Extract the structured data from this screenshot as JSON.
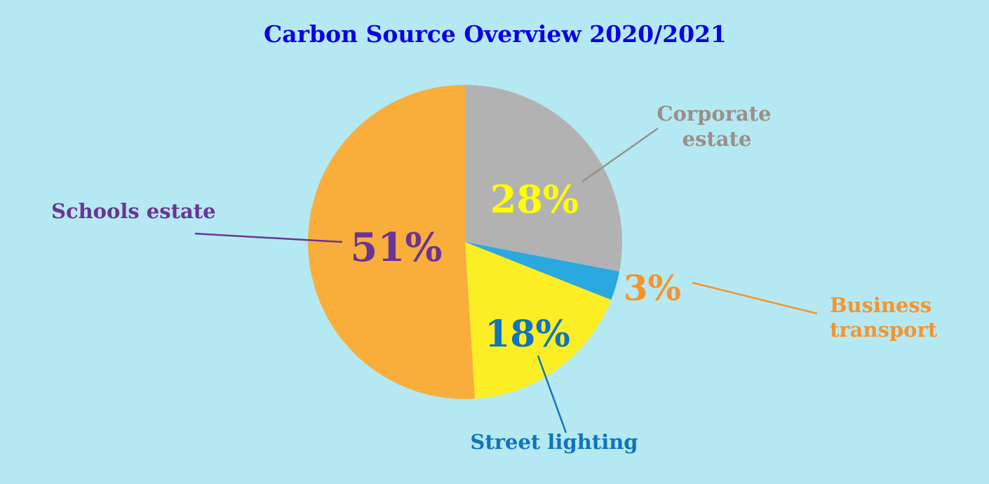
{
  "chart_data": {
    "type": "pie",
    "title": "Carbon Source Overview 2020/2021",
    "categories": [
      "Corporate estate",
      "Business transport",
      "Street lighting",
      "Schools estate"
    ],
    "values": [
      28,
      3,
      18,
      51
    ],
    "value_labels": [
      "28%",
      "3%",
      "18%",
      "51%"
    ],
    "slice_colors": [
      "#b2b2b2",
      "#2aa8e0",
      "#fbee24",
      "#f9ae3c"
    ],
    "percent_label_colors": [
      "#ffff00",
      "#f7932b",
      "#1274ba",
      "#6b3494"
    ],
    "category_label_colors": [
      "#999088",
      "#f7932b",
      "#1274ba",
      "#6b3494"
    ],
    "start": "12 o'clock",
    "direction": "clockwise",
    "legend": "none"
  },
  "colors": {
    "background": "#b4e9f3",
    "title": "#0b00e6"
  }
}
